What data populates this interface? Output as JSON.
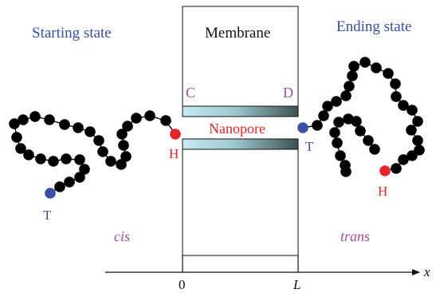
{
  "labels": {
    "starting_state": "Starting state",
    "ending_state": "Ending state",
    "membrane": "Membrane",
    "nanopore": "Nanopore",
    "corner_c": "C",
    "corner_d": "D",
    "head_left": "H",
    "tail_left": "T",
    "head_right": "H",
    "tail_right": "T",
    "cis": "cis",
    "trans": "trans",
    "tick_zero": "0",
    "tick_L": "L",
    "axis_x": "x"
  },
  "colors": {
    "bead": "#000000",
    "head_bead": "#e8242b",
    "tail_bead": "#3a4fa0",
    "state_text": "#3a4fa0",
    "pore_text": "#e8242b",
    "cd_text": "#a24b9a",
    "side_text": "#a24b9a",
    "pore_gradient_light": "#c6eaf0",
    "pore_gradient_dark": "#3d5050"
  }
}
